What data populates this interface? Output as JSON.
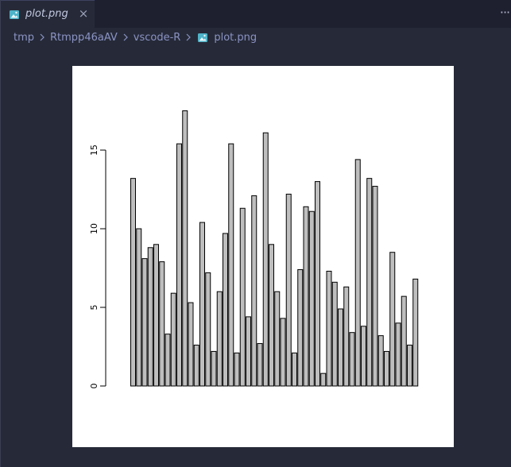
{
  "tab": {
    "label": "plot.png",
    "file_icon": "image-file-icon",
    "close_icon": "close-icon"
  },
  "toolbar": {
    "more_label": "···"
  },
  "breadcrumb": {
    "items": [
      "tmp",
      "Rtmpp46aAV",
      "vscode-R"
    ],
    "file": "plot.png"
  },
  "colors": {
    "background": "#262a38",
    "tabbar": "#1e2030",
    "breadcrumb_text": "#8b93c4",
    "bar_fill": "#bebebe",
    "bar_stroke": "#000000"
  },
  "chart_data": {
    "type": "bar",
    "title": "",
    "xlabel": "",
    "ylabel": "",
    "ylim": [
      0,
      17.5
    ],
    "yticks": [
      0,
      5,
      10,
      15
    ],
    "grid": false,
    "values": [
      13.2,
      10.0,
      8.1,
      8.8,
      9.0,
      7.9,
      3.3,
      5.9,
      15.4,
      17.5,
      5.3,
      2.6,
      10.4,
      7.2,
      2.2,
      6.0,
      9.7,
      15.4,
      2.1,
      11.3,
      4.4,
      12.1,
      2.7,
      16.1,
      9.0,
      6.0,
      4.3,
      12.2,
      2.1,
      7.4,
      11.4,
      11.1,
      13.0,
      0.8,
      7.3,
      6.6,
      4.9,
      6.3,
      3.4,
      14.4,
      3.8,
      13.2,
      12.7,
      3.2,
      2.2,
      8.5,
      4.0,
      5.7,
      2.6,
      6.8
    ]
  }
}
